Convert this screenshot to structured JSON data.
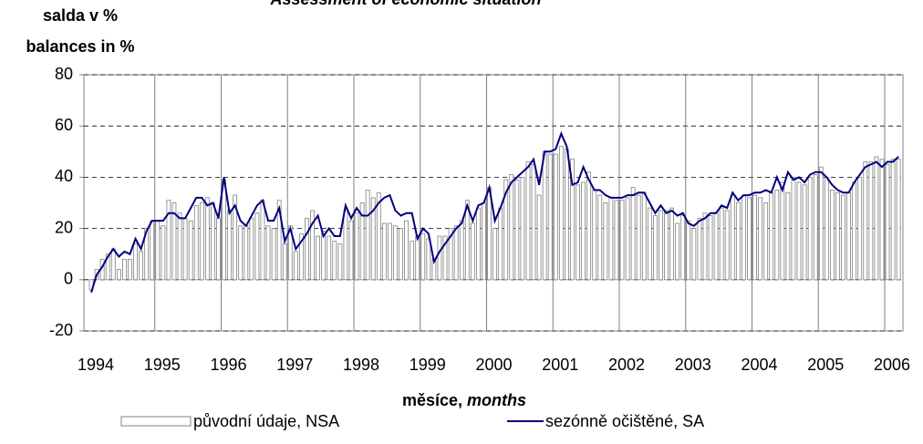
{
  "chart_data": {
    "type": "bar+line",
    "title": "Assessment of economic situation",
    "y_label_cz": "salda v %",
    "y_label_en": "balances in %",
    "x_label_cz": "měsíce,",
    "x_label_en": "months",
    "categories": [
      "1994",
      null,
      null,
      null,
      null,
      null,
      null,
      null,
      null,
      null,
      null,
      null,
      "1995",
      null,
      null,
      null,
      null,
      null,
      null,
      null,
      null,
      null,
      null,
      null,
      "1996",
      null,
      null,
      null,
      null,
      null,
      null,
      null,
      null,
      null,
      null,
      null,
      "1997",
      null,
      null,
      null,
      null,
      null,
      null,
      null,
      null,
      null,
      null,
      null,
      "1998",
      null,
      null,
      null,
      null,
      null,
      null,
      null,
      null,
      null,
      null,
      null,
      "1999",
      null,
      null,
      null,
      null,
      null,
      null,
      null,
      null,
      null,
      null,
      null,
      "2000",
      null,
      null,
      null,
      null,
      null,
      null,
      null,
      null,
      null,
      null,
      null,
      "2001",
      null,
      null,
      null,
      null,
      null,
      null,
      null,
      null,
      null,
      null,
      null,
      "2002",
      null,
      null,
      null,
      null,
      null,
      null,
      null,
      null,
      null,
      null,
      null,
      "2003",
      null,
      null,
      null,
      null,
      null,
      null,
      null,
      null,
      null,
      null,
      null,
      "2004",
      null,
      null,
      null,
      null,
      null,
      null,
      null,
      null,
      null,
      null,
      null,
      "2005",
      null,
      null,
      null,
      null,
      null,
      null,
      null,
      null,
      null,
      null,
      null,
      "2006",
      null,
      null
    ],
    "series": [
      {
        "name": "původní údaje, NSA",
        "type": "bar",
        "color": "#ffffff",
        "stroke": "#808080",
        "values": [
          -4,
          4,
          8,
          10,
          12,
          4,
          8,
          8,
          14,
          11,
          20,
          23,
          23,
          21,
          31,
          30,
          26,
          24,
          23,
          29,
          30,
          32,
          30,
          24,
          39,
          27,
          33,
          21,
          21,
          24,
          26,
          31,
          21,
          20,
          31,
          14,
          21,
          11,
          18,
          24,
          27,
          17,
          19,
          17,
          15,
          14,
          27,
          23,
          26,
          30,
          35,
          32,
          34,
          22,
          22,
          21,
          20,
          23,
          15,
          17,
          18,
          16,
          8,
          17,
          17,
          20,
          21,
          23,
          31,
          22,
          28,
          30,
          36,
          20,
          28,
          39,
          41,
          39,
          40,
          46,
          45,
          33,
          50,
          49,
          49,
          52,
          51,
          47,
          37,
          38,
          42,
          35,
          33,
          30,
          32,
          31,
          31,
          32,
          36,
          33,
          34,
          28,
          25,
          27,
          27,
          28,
          22,
          25,
          23,
          20,
          24,
          26,
          25,
          26,
          28,
          27,
          33,
          30,
          33,
          32,
          33,
          32,
          30,
          34,
          35,
          38,
          34,
          40,
          38,
          37,
          40,
          41,
          44,
          40,
          35,
          34,
          33,
          34,
          38,
          40,
          46,
          46,
          48,
          47,
          45,
          47,
          47
        ]
      },
      {
        "name": "sezónně očištěné, SA",
        "type": "line",
        "color": "#000080",
        "values": [
          -5,
          2,
          5,
          9,
          12,
          9,
          11,
          10,
          16,
          12,
          19,
          23,
          23,
          23,
          26,
          26,
          24,
          24,
          28,
          32,
          32,
          29,
          30,
          24,
          40,
          26,
          29,
          23,
          21,
          25,
          29,
          31,
          23,
          23,
          28,
          15,
          20,
          12,
          15,
          18,
          22,
          25,
          17,
          20,
          17,
          17,
          29,
          24,
          28,
          25,
          25,
          27,
          30,
          32,
          33,
          27,
          25,
          26,
          26,
          16,
          20,
          18,
          7,
          11,
          14,
          17,
          20,
          22,
          29,
          23,
          29,
          30,
          36,
          23,
          28,
          34,
          38,
          40,
          42,
          44,
          47,
          37,
          50,
          50,
          51,
          57,
          52,
          37,
          38,
          44,
          39,
          35,
          35,
          33,
          32,
          32,
          32,
          33,
          33,
          34,
          34,
          30,
          26,
          29,
          26,
          27,
          25,
          26,
          22,
          21,
          23,
          24,
          26,
          26,
          29,
          28,
          34,
          31,
          33,
          33,
          34,
          34,
          35,
          34,
          40,
          35,
          42,
          39,
          40,
          38,
          41,
          42,
          42,
          40,
          37,
          35,
          34,
          34,
          38,
          41,
          44,
          45,
          46,
          44,
          46,
          46,
          48
        ]
      }
    ],
    "ylim": [
      -20,
      80
    ],
    "yticks": [
      -20,
      0,
      20,
      40,
      60,
      80
    ],
    "grid": true
  }
}
